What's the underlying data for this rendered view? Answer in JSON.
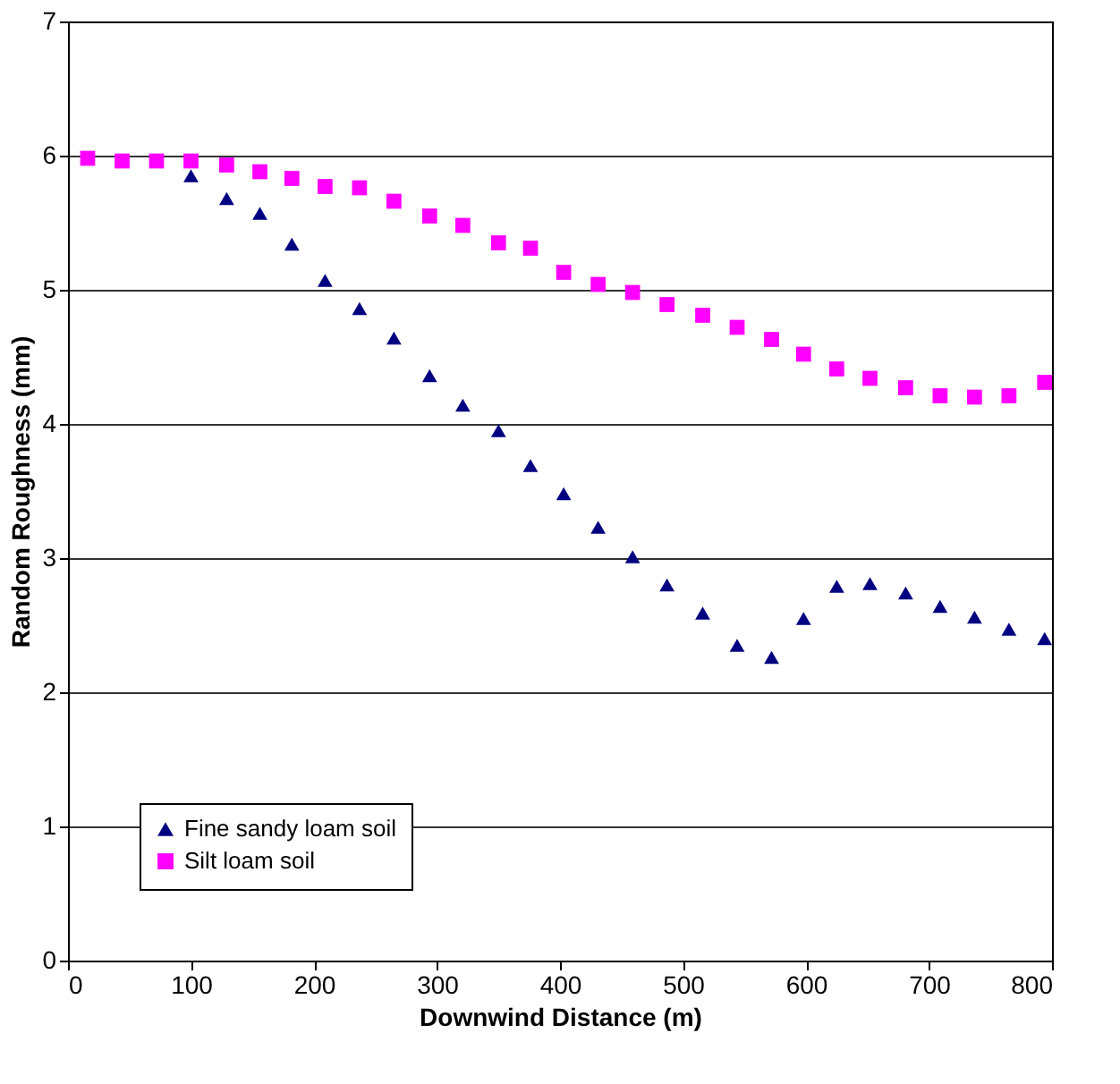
{
  "chart_data": {
    "type": "scatter",
    "xlabel": "Downwind Distance (m)",
    "ylabel": "Random Roughness (mm)",
    "xlim": [
      0,
      800
    ],
    "xticks": [
      0,
      100,
      200,
      300,
      400,
      500,
      600,
      700,
      800
    ],
    "ylim": [
      0,
      7
    ],
    "yticks": [
      0,
      1,
      2,
      3,
      4,
      5,
      6,
      7
    ],
    "grid": "y",
    "legend": "bottom left",
    "series": [
      {
        "name": "Fine sandy loam soil",
        "color": "#000080",
        "marker": "triangle",
        "x": [
          100,
          129,
          156,
          182,
          209,
          237,
          265,
          294,
          321,
          350,
          376,
          403,
          431,
          459,
          487,
          516,
          544,
          572,
          598,
          625,
          652,
          681,
          709,
          737,
          765,
          794
        ],
        "values": [
          5.85,
          5.68,
          5.57,
          5.34,
          5.07,
          4.86,
          4.64,
          4.36,
          4.14,
          3.95,
          3.69,
          3.48,
          3.23,
          3.01,
          2.8,
          2.59,
          2.35,
          2.26,
          2.55,
          2.79,
          2.81,
          2.74,
          2.64,
          2.56,
          2.47,
          2.4
        ]
      },
      {
        "name": "Silt loam soil",
        "color": "#ff00ff",
        "marker": "square",
        "x": [
          16,
          44,
          72,
          100,
          129,
          156,
          182,
          209,
          237,
          265,
          294,
          321,
          350,
          376,
          403,
          431,
          459,
          487,
          516,
          544,
          572,
          598,
          625,
          652,
          681,
          709,
          737,
          765,
          794
        ],
        "values": [
          5.98,
          5.96,
          5.96,
          5.96,
          5.93,
          5.88,
          5.83,
          5.77,
          5.76,
          5.66,
          5.55,
          5.48,
          5.35,
          5.31,
          5.13,
          5.04,
          4.98,
          4.89,
          4.81,
          4.72,
          4.63,
          4.52,
          4.41,
          4.34,
          4.27,
          4.21,
          4.2,
          4.21,
          4.31
        ]
      }
    ]
  }
}
